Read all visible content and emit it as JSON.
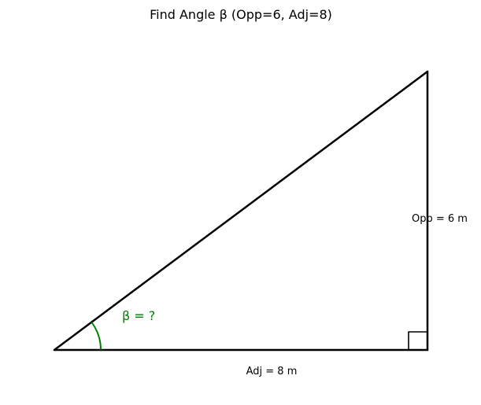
{
  "figure": {
    "title": "Find Angle β (Opp=6, Adj=8)"
  },
  "triangle": {
    "opposite_label": "Opp = 6 m",
    "adjacent_label": "Adj = 8 m",
    "angle_label": "β = ?",
    "opposite_value": 6,
    "adjacent_value": 8,
    "unit": "m"
  },
  "colors": {
    "stroke": "#000000",
    "angle": "#008000",
    "background": "#ffffff"
  }
}
